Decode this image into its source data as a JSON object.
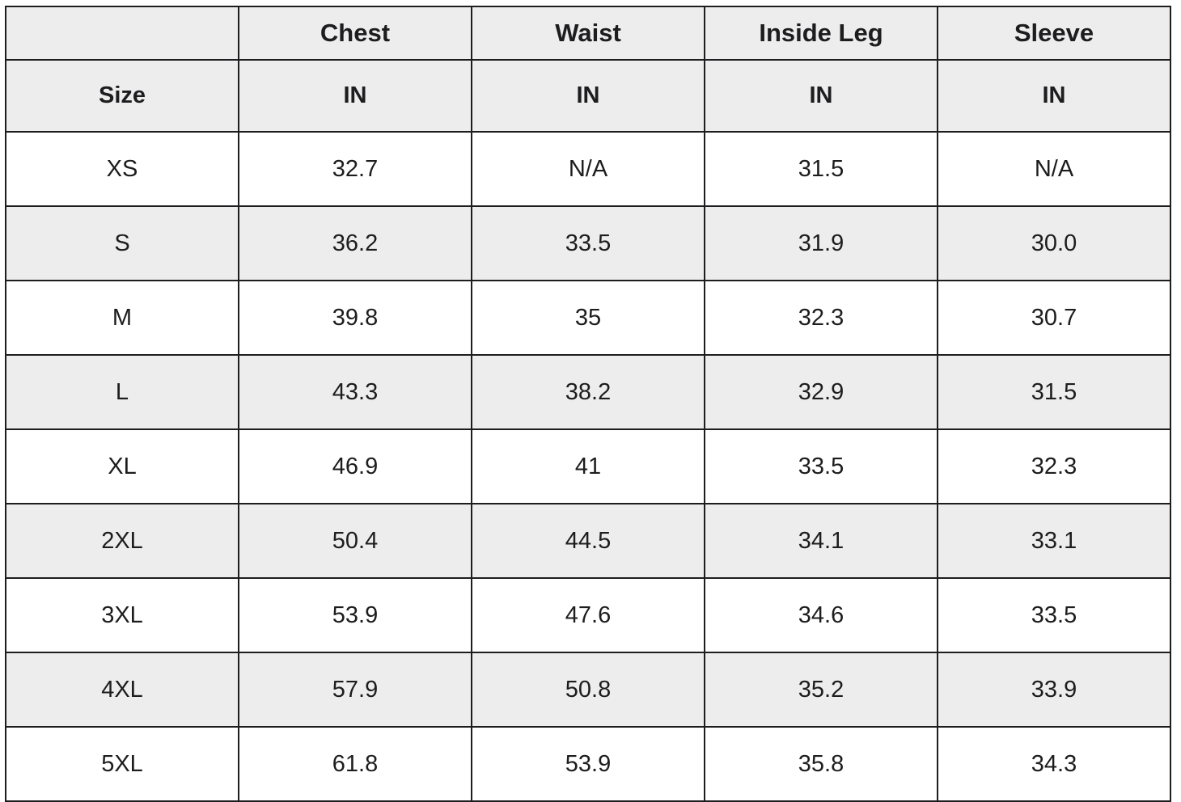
{
  "colors": {
    "header_background": "#ededed",
    "stripe_background": "#ededed",
    "row_background": "#ffffff",
    "border": "#1d1d1f",
    "text": "#1d1d1f",
    "page_background": "#ffffff"
  },
  "chart_data": {
    "type": "table",
    "title": "",
    "columns": [
      "",
      "Chest",
      "Waist",
      "Inside Leg",
      "Sleeve"
    ],
    "unit_row": [
      "Size",
      "IN",
      "IN",
      "IN",
      "IN"
    ],
    "rows": [
      [
        "XS",
        "32.7",
        "N/A",
        "31.5",
        "N/A"
      ],
      [
        "S",
        "36.2",
        "33.5",
        "31.9",
        "30.0"
      ],
      [
        "M",
        "39.8",
        "35",
        "32.3",
        "30.7"
      ],
      [
        "L",
        "43.3",
        "38.2",
        "32.9",
        "31.5"
      ],
      [
        "XL",
        "46.9",
        "41",
        "33.5",
        "32.3"
      ],
      [
        "2XL",
        "50.4",
        "44.5",
        "34.1",
        "33.1"
      ],
      [
        "3XL",
        "53.9",
        "47.6",
        "34.6",
        "33.5"
      ],
      [
        "4XL",
        "57.9",
        "50.8",
        "35.2",
        "33.9"
      ],
      [
        "5XL",
        "61.8",
        "53.9",
        "35.8",
        "34.3"
      ]
    ],
    "layout": {
      "grid": true,
      "striped_rows": true,
      "text_align": "center"
    }
  }
}
